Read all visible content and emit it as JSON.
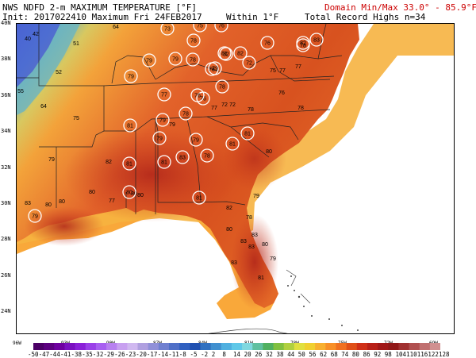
{
  "header": {
    "title_left": "NWS NDFD 2-m MAXIMUM TEMPERATURE [°F]",
    "title_right": "Domain Min/Max  33.0° -  85.9°F",
    "subtitle_left": "Init: 2017022410 Maximum Fri 24FEB2017",
    "subtitle_mid": "Within 1°F",
    "subtitle_right": "Total Record Highs n=34"
  },
  "lat_labels": [
    "40N",
    "38N",
    "36N",
    "34N",
    "32N",
    "30N",
    "28N",
    "26N",
    "24N"
  ],
  "lon_labels": [
    "96W",
    "93W",
    "90W",
    "87W",
    "84W",
    "81W",
    "78W",
    "75W",
    "72W",
    "69W"
  ],
  "colorbar_labels": [
    "-50",
    "-47",
    "-44",
    "-41",
    "-38",
    "-35",
    "-32",
    "-29",
    "-26",
    "-23",
    "-20",
    "-17",
    "-14",
    "-11",
    "-8",
    "-5",
    "-2",
    "2",
    "8",
    "14",
    "20",
    "26",
    "32",
    "38",
    "44",
    "50",
    "56",
    "62",
    "68",
    "74",
    "80",
    "86",
    "92",
    "98",
    "104",
    "110",
    "116",
    "122",
    "128"
  ],
  "colors": {
    "ocean": "#ffffff",
    "gulf_warm": "#f08a2a",
    "gulf_edge": "#f9b640",
    "record_ring": "#ffffff",
    "header_red": "#cc0000"
  },
  "record_circles": [
    "73",
    "75",
    "76",
    "78",
    "82",
    "79",
    "79",
    "78",
    "81",
    "82",
    "76",
    "78",
    "78",
    "72",
    "79",
    "79",
    "77",
    "78",
    "79",
    "76",
    "76",
    "81",
    "79",
    "78",
    "81",
    "79",
    "78",
    "81",
    "81",
    "81",
    "83",
    "80",
    "81",
    "82",
    "83",
    "79"
  ],
  "temp_labels": [
    "40",
    "42",
    "51",
    "64",
    "52",
    "55",
    "64",
    "75",
    "79",
    "82",
    "83",
    "80",
    "80",
    "80",
    "77",
    "80",
    "80",
    "79",
    "72",
    "75",
    "77",
    "77",
    "76",
    "78",
    "77",
    "78",
    "72",
    "80",
    "82",
    "78",
    "80",
    "83",
    "83",
    "83",
    "83",
    "80",
    "81",
    "79",
    "79"
  ]
}
